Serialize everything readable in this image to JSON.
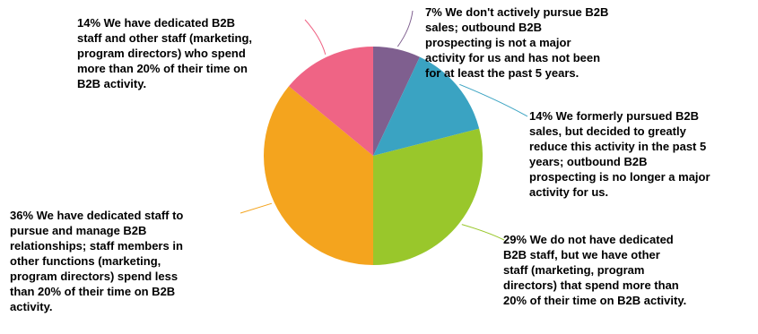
{
  "chart_data": {
    "type": "pie",
    "title": "",
    "slices": [
      {
        "value": 7,
        "color": "#7f5f8f",
        "label": "7% We don't actively pursue B2B\nsales; outbound B2B\nprospecting is not a major\nactivity for us and has not been\nfor at least the past 5 years."
      },
      {
        "value": 14,
        "color": "#3aa3c2",
        "label": "14% We formerly pursued B2B\nsales, but decided to greatly\nreduce this activity in the past 5\nyears; outbound B2B\nprospecting is no longer a major\nactivity for us."
      },
      {
        "value": 29,
        "color": "#99c72b",
        "label": "29% We do not have dedicated\nB2B staff, but we have other\nstaff (marketing, program\ndirectors) that spend more than\n20% of their time on B2B activity."
      },
      {
        "value": 36,
        "color": "#f4a41e",
        "label": "36% We have dedicated staff to\npursue and manage B2B\nrelationships; staff members in\nother functions (marketing,\nprogram directors) spend less\nthan 20% of their time on B2B\nactivity."
      },
      {
        "value": 14,
        "color": "#ef6485",
        "label": "14% We have dedicated B2B\nstaff and other staff (marketing,\nprogram directors) who spend\nmore than 20% of their time on\nB2B activity."
      }
    ]
  }
}
